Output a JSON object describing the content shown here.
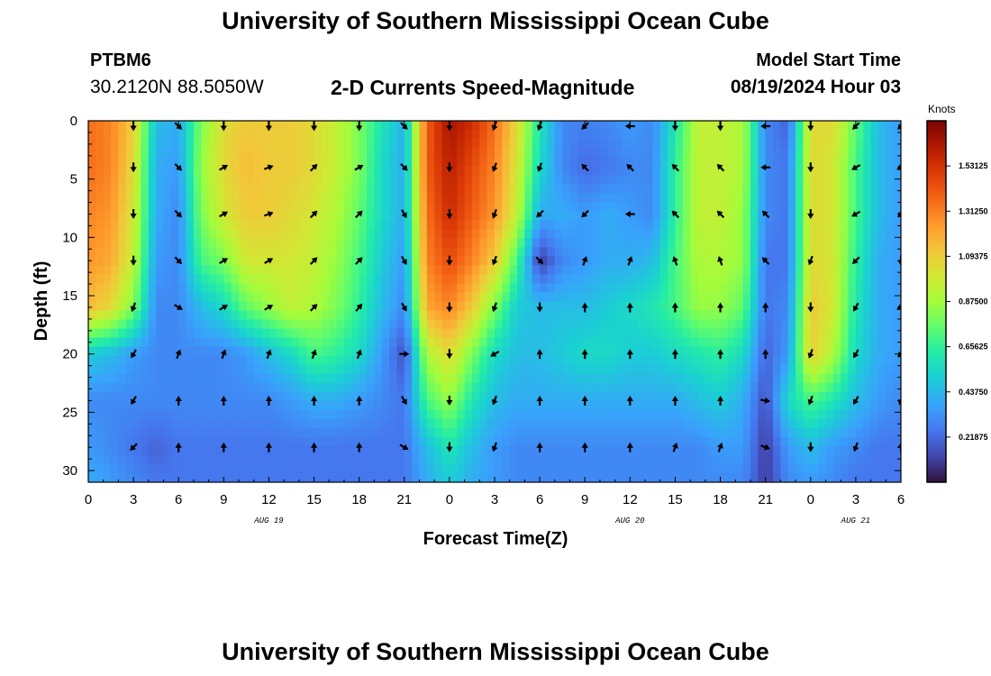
{
  "page": {
    "title_top": "University of Southern Mississippi Ocean Cube",
    "title_bottom": "University of Southern Mississippi Ocean Cube",
    "station_id": "PTBM6",
    "station_coords": "30.2120N  88.5050W",
    "model_start_label": "Model Start Time",
    "model_start_time": "08/19/2024 Hour 03"
  },
  "chart_data": {
    "type": "heatmap",
    "title": "2-D Currents Speed-Magnitude",
    "xlabel": "Forecast Time(Z)",
    "ylabel": "Depth (ft)",
    "x_range_hours": [
      0,
      54
    ],
    "y_range_ft": [
      0,
      31
    ],
    "x_ticks": [
      {
        "hour": 0,
        "label": "0"
      },
      {
        "hour": 3,
        "label": "3"
      },
      {
        "hour": 6,
        "label": "6"
      },
      {
        "hour": 9,
        "label": "9"
      },
      {
        "hour": 12,
        "label": "12"
      },
      {
        "hour": 15,
        "label": "15"
      },
      {
        "hour": 18,
        "label": "18"
      },
      {
        "hour": 21,
        "label": "21"
      },
      {
        "hour": 24,
        "label": "0"
      },
      {
        "hour": 27,
        "label": "3"
      },
      {
        "hour": 30,
        "label": "6"
      },
      {
        "hour": 33,
        "label": "9"
      },
      {
        "hour": 36,
        "label": "12"
      },
      {
        "hour": 39,
        "label": "15"
      },
      {
        "hour": 42,
        "label": "18"
      },
      {
        "hour": 45,
        "label": "21"
      },
      {
        "hour": 48,
        "label": "0"
      },
      {
        "hour": 51,
        "label": "3"
      },
      {
        "hour": 54,
        "label": "6"
      }
    ],
    "y_ticks": [
      {
        "depth": 0,
        "label": "0"
      },
      {
        "depth": 5,
        "label": "5"
      },
      {
        "depth": 10,
        "label": "10"
      },
      {
        "depth": 15,
        "label": "15"
      },
      {
        "depth": 20,
        "label": "20"
      },
      {
        "depth": 25,
        "label": "25"
      },
      {
        "depth": 30,
        "label": "30"
      }
    ],
    "date_labels": [
      {
        "hour": 12,
        "label": "AUG 19"
      },
      {
        "hour": 36,
        "label": "AUG 20"
      },
      {
        "hour": 51,
        "label": "AUG 21"
      }
    ],
    "colorbar": {
      "title": "Knots",
      "min": 0.0,
      "max": 1.75,
      "ticks": [
        {
          "value": 1.53125,
          "label": "1.53125"
        },
        {
          "value": 1.3125,
          "label": "1.31250"
        },
        {
          "value": 1.09375,
          "label": "1.09375"
        },
        {
          "value": 0.875,
          "label": "0.87500"
        },
        {
          "value": 0.65625,
          "label": "0.65625"
        },
        {
          "value": 0.4375,
          "label": "0.43750"
        },
        {
          "value": 0.21875,
          "label": "0.21875"
        }
      ]
    },
    "depths_ft": [
      0,
      4,
      8,
      12,
      16,
      20,
      24,
      28,
      31
    ],
    "times_hours": [
      0,
      1.5,
      3,
      4.5,
      6,
      7.5,
      9,
      10.5,
      12,
      13.5,
      15,
      16.5,
      18,
      19.5,
      21,
      22.5,
      24,
      25.5,
      27,
      28.5,
      30,
      31.5,
      33,
      34.5,
      36,
      37.5,
      39,
      40.5,
      42,
      43.5,
      45,
      46.5,
      48,
      49.5,
      51,
      52.5,
      54
    ],
    "speed_knots": [
      [
        1.35,
        1.3,
        1.1,
        0.45,
        0.4,
        0.8,
        1.05,
        1.1,
        1.1,
        1.1,
        1.05,
        0.95,
        0.8,
        0.6,
        0.4,
        1.4,
        1.65,
        1.55,
        1.35,
        1.05,
        0.6,
        0.3,
        0.28,
        0.3,
        0.35,
        0.3,
        0.6,
        0.95,
        0.95,
        0.9,
        0.3,
        0.2,
        1.05,
        1.05,
        0.75,
        0.45,
        0.35
      ],
      [
        1.35,
        1.3,
        1.05,
        0.4,
        0.35,
        0.85,
        1.05,
        1.15,
        1.1,
        1.1,
        1.05,
        0.95,
        0.8,
        0.55,
        0.4,
        1.4,
        1.6,
        1.45,
        1.3,
        1.0,
        0.55,
        0.3,
        0.22,
        0.25,
        0.3,
        0.3,
        0.65,
        0.95,
        0.95,
        0.9,
        0.3,
        0.25,
        1.05,
        1.0,
        0.7,
        0.45,
        0.35
      ],
      [
        1.3,
        1.25,
        1.0,
        0.4,
        0.3,
        0.8,
        1.0,
        1.1,
        1.1,
        1.05,
        1.0,
        0.9,
        0.75,
        0.55,
        0.4,
        1.35,
        1.55,
        1.4,
        1.25,
        0.95,
        0.4,
        0.4,
        0.35,
        0.4,
        0.35,
        0.3,
        0.65,
        0.95,
        0.95,
        0.85,
        0.3,
        0.25,
        1.05,
        1.0,
        0.7,
        0.45,
        0.35
      ],
      [
        1.25,
        1.2,
        0.95,
        0.35,
        0.3,
        0.7,
        0.8,
        1.0,
        1.0,
        1.0,
        0.95,
        0.85,
        0.7,
        0.5,
        0.35,
        1.3,
        1.45,
        1.3,
        1.1,
        0.7,
        0.1,
        0.3,
        0.35,
        0.4,
        0.4,
        0.45,
        0.7,
        0.9,
        0.9,
        0.85,
        0.25,
        0.25,
        1.05,
        1.0,
        0.65,
        0.4,
        0.35
      ],
      [
        1.15,
        1.05,
        0.8,
        0.3,
        0.3,
        0.45,
        0.55,
        0.75,
        0.85,
        0.95,
        0.9,
        0.8,
        0.65,
        0.45,
        0.3,
        1.2,
        1.3,
        1.1,
        0.8,
        0.5,
        0.45,
        0.45,
        0.45,
        0.5,
        0.55,
        0.6,
        0.7,
        0.85,
        0.85,
        0.75,
        0.25,
        0.3,
        1.1,
        1.0,
        0.6,
        0.4,
        0.35
      ],
      [
        0.5,
        0.45,
        0.35,
        0.3,
        0.3,
        0.3,
        0.3,
        0.35,
        0.45,
        0.55,
        0.7,
        0.65,
        0.55,
        0.35,
        0.15,
        0.9,
        1.05,
        0.8,
        0.55,
        0.45,
        0.45,
        0.5,
        0.55,
        0.55,
        0.5,
        0.5,
        0.55,
        0.6,
        0.65,
        0.55,
        0.2,
        0.35,
        1.1,
        0.9,
        0.55,
        0.4,
        0.35
      ],
      [
        0.3,
        0.3,
        0.3,
        0.3,
        0.3,
        0.3,
        0.3,
        0.3,
        0.3,
        0.35,
        0.4,
        0.4,
        0.35,
        0.3,
        0.25,
        0.7,
        0.85,
        0.6,
        0.45,
        0.4,
        0.4,
        0.4,
        0.4,
        0.4,
        0.4,
        0.4,
        0.4,
        0.45,
        0.5,
        0.4,
        0.15,
        0.55,
        0.7,
        0.6,
        0.45,
        0.35,
        0.3
      ],
      [
        0.35,
        0.3,
        0.25,
        0.2,
        0.25,
        0.25,
        0.25,
        0.25,
        0.25,
        0.25,
        0.25,
        0.25,
        0.25,
        0.25,
        0.25,
        0.45,
        0.6,
        0.45,
        0.35,
        0.3,
        0.3,
        0.3,
        0.3,
        0.3,
        0.3,
        0.3,
        0.3,
        0.3,
        0.35,
        0.35,
        0.1,
        0.35,
        0.45,
        0.35,
        0.3,
        0.25,
        0.25
      ],
      [
        0.4,
        0.35,
        0.3,
        0.25,
        0.25,
        0.25,
        0.25,
        0.25,
        0.25,
        0.25,
        0.25,
        0.25,
        0.25,
        0.25,
        0.25,
        0.4,
        0.5,
        0.4,
        0.35,
        0.3,
        0.3,
        0.3,
        0.3,
        0.3,
        0.3,
        0.3,
        0.3,
        0.3,
        0.3,
        0.3,
        0.1,
        0.3,
        0.35,
        0.3,
        0.25,
        0.25,
        0.25
      ]
    ],
    "vector_times_hours": [
      3,
      6,
      9,
      12,
      15,
      18,
      21,
      24,
      27,
      30,
      33,
      36,
      39,
      42,
      45,
      48,
      51,
      54
    ],
    "vector_depths_ft": [
      0,
      4,
      8,
      12,
      16,
      20,
      24,
      28
    ],
    "vector_directions_deg": [
      [
        180,
        135,
        180,
        180,
        180,
        180,
        135,
        180,
        200,
        200,
        225,
        270,
        180,
        180,
        270,
        180,
        225,
        225
      ],
      [
        180,
        135,
        60,
        70,
        45,
        60,
        135,
        180,
        200,
        200,
        315,
        315,
        315,
        315,
        270,
        180,
        240,
        240
      ],
      [
        180,
        135,
        60,
        70,
        45,
        45,
        150,
        180,
        200,
        225,
        225,
        270,
        315,
        315,
        315,
        180,
        240,
        225
      ],
      [
        180,
        135,
        60,
        60,
        45,
        45,
        150,
        180,
        200,
        135,
        20,
        20,
        340,
        340,
        315,
        200,
        225,
        180
      ],
      [
        200,
        120,
        60,
        60,
        45,
        40,
        150,
        180,
        200,
        180,
        0,
        0,
        0,
        0,
        0,
        180,
        210,
        240
      ],
      [
        210,
        20,
        20,
        20,
        20,
        20,
        90,
        180,
        240,
        0,
        0,
        0,
        0,
        0,
        0,
        200,
        210,
        225
      ],
      [
        210,
        0,
        0,
        0,
        0,
        0,
        150,
        180,
        200,
        0,
        0,
        0,
        0,
        0,
        100,
        200,
        210,
        200
      ],
      [
        225,
        0,
        0,
        0,
        0,
        0,
        120,
        180,
        200,
        0,
        0,
        0,
        20,
        20,
        110,
        180,
        200,
        0
      ]
    ]
  }
}
